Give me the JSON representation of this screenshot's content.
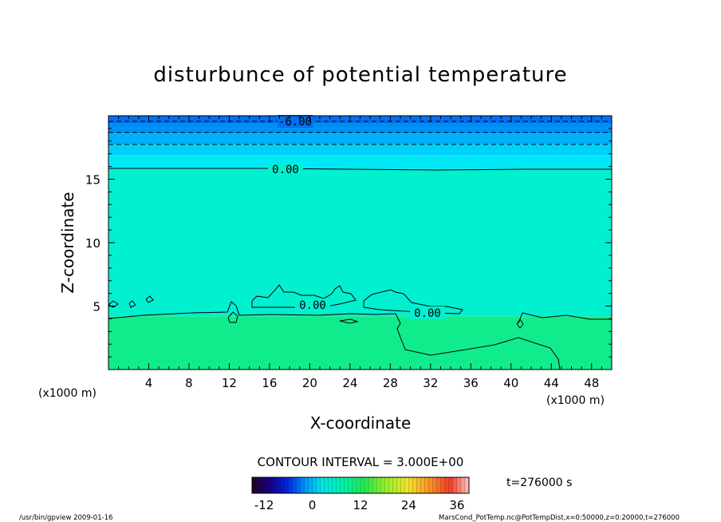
{
  "chart_data": {
    "type": "heatmap",
    "title": "disturbunce of potential temperature",
    "xlabel": "X-coordinate",
    "ylabel": "Z-coordinate",
    "x_unit_left": "(x1000 m)",
    "x_unit_right": "(x1000 m)",
    "xlim": [
      0,
      50
    ],
    "ylim": [
      0,
      20
    ],
    "xticks": [
      "4",
      "8",
      "12",
      "16",
      "20",
      "24",
      "28",
      "32",
      "36",
      "40",
      "44",
      "48"
    ],
    "yticks": [
      "5",
      "10",
      "15"
    ],
    "contour_labels": [
      "-6.00",
      "0.00",
      "0.00",
      "0.00"
    ],
    "contour_interval": "CONTOUR INTERVAL = 3.000E+00",
    "colorbar_ticks": [
      "-12",
      "0",
      "12",
      "24",
      "36"
    ],
    "colorbar_range": [
      -15,
      39
    ],
    "time_label": "t=276000 s",
    "footer_left": "/usr/bin/gpview   2009-01-16",
    "footer_right": "MarsCond_PotTemp.nc@PotTempDist,x=0:50000,z=0:20000,t=276000",
    "bands": [
      {
        "z0": 19.4,
        "z1": 20.0,
        "color": "#0070f0"
      },
      {
        "z0": 18.6,
        "z1": 19.4,
        "color": "#0090f4"
      },
      {
        "z0": 17.8,
        "z1": 18.6,
        "color": "#00b0f8"
      },
      {
        "z0": 16.9,
        "z1": 17.8,
        "color": "#00d0fa"
      },
      {
        "z0": 15.8,
        "z1": 16.9,
        "color": "#00e8f6"
      },
      {
        "z0": 4.2,
        "z1": 15.8,
        "color": "#00f0d0"
      },
      {
        "z0": 0.0,
        "z1": 4.2,
        "color": "#10ec8c"
      }
    ]
  }
}
